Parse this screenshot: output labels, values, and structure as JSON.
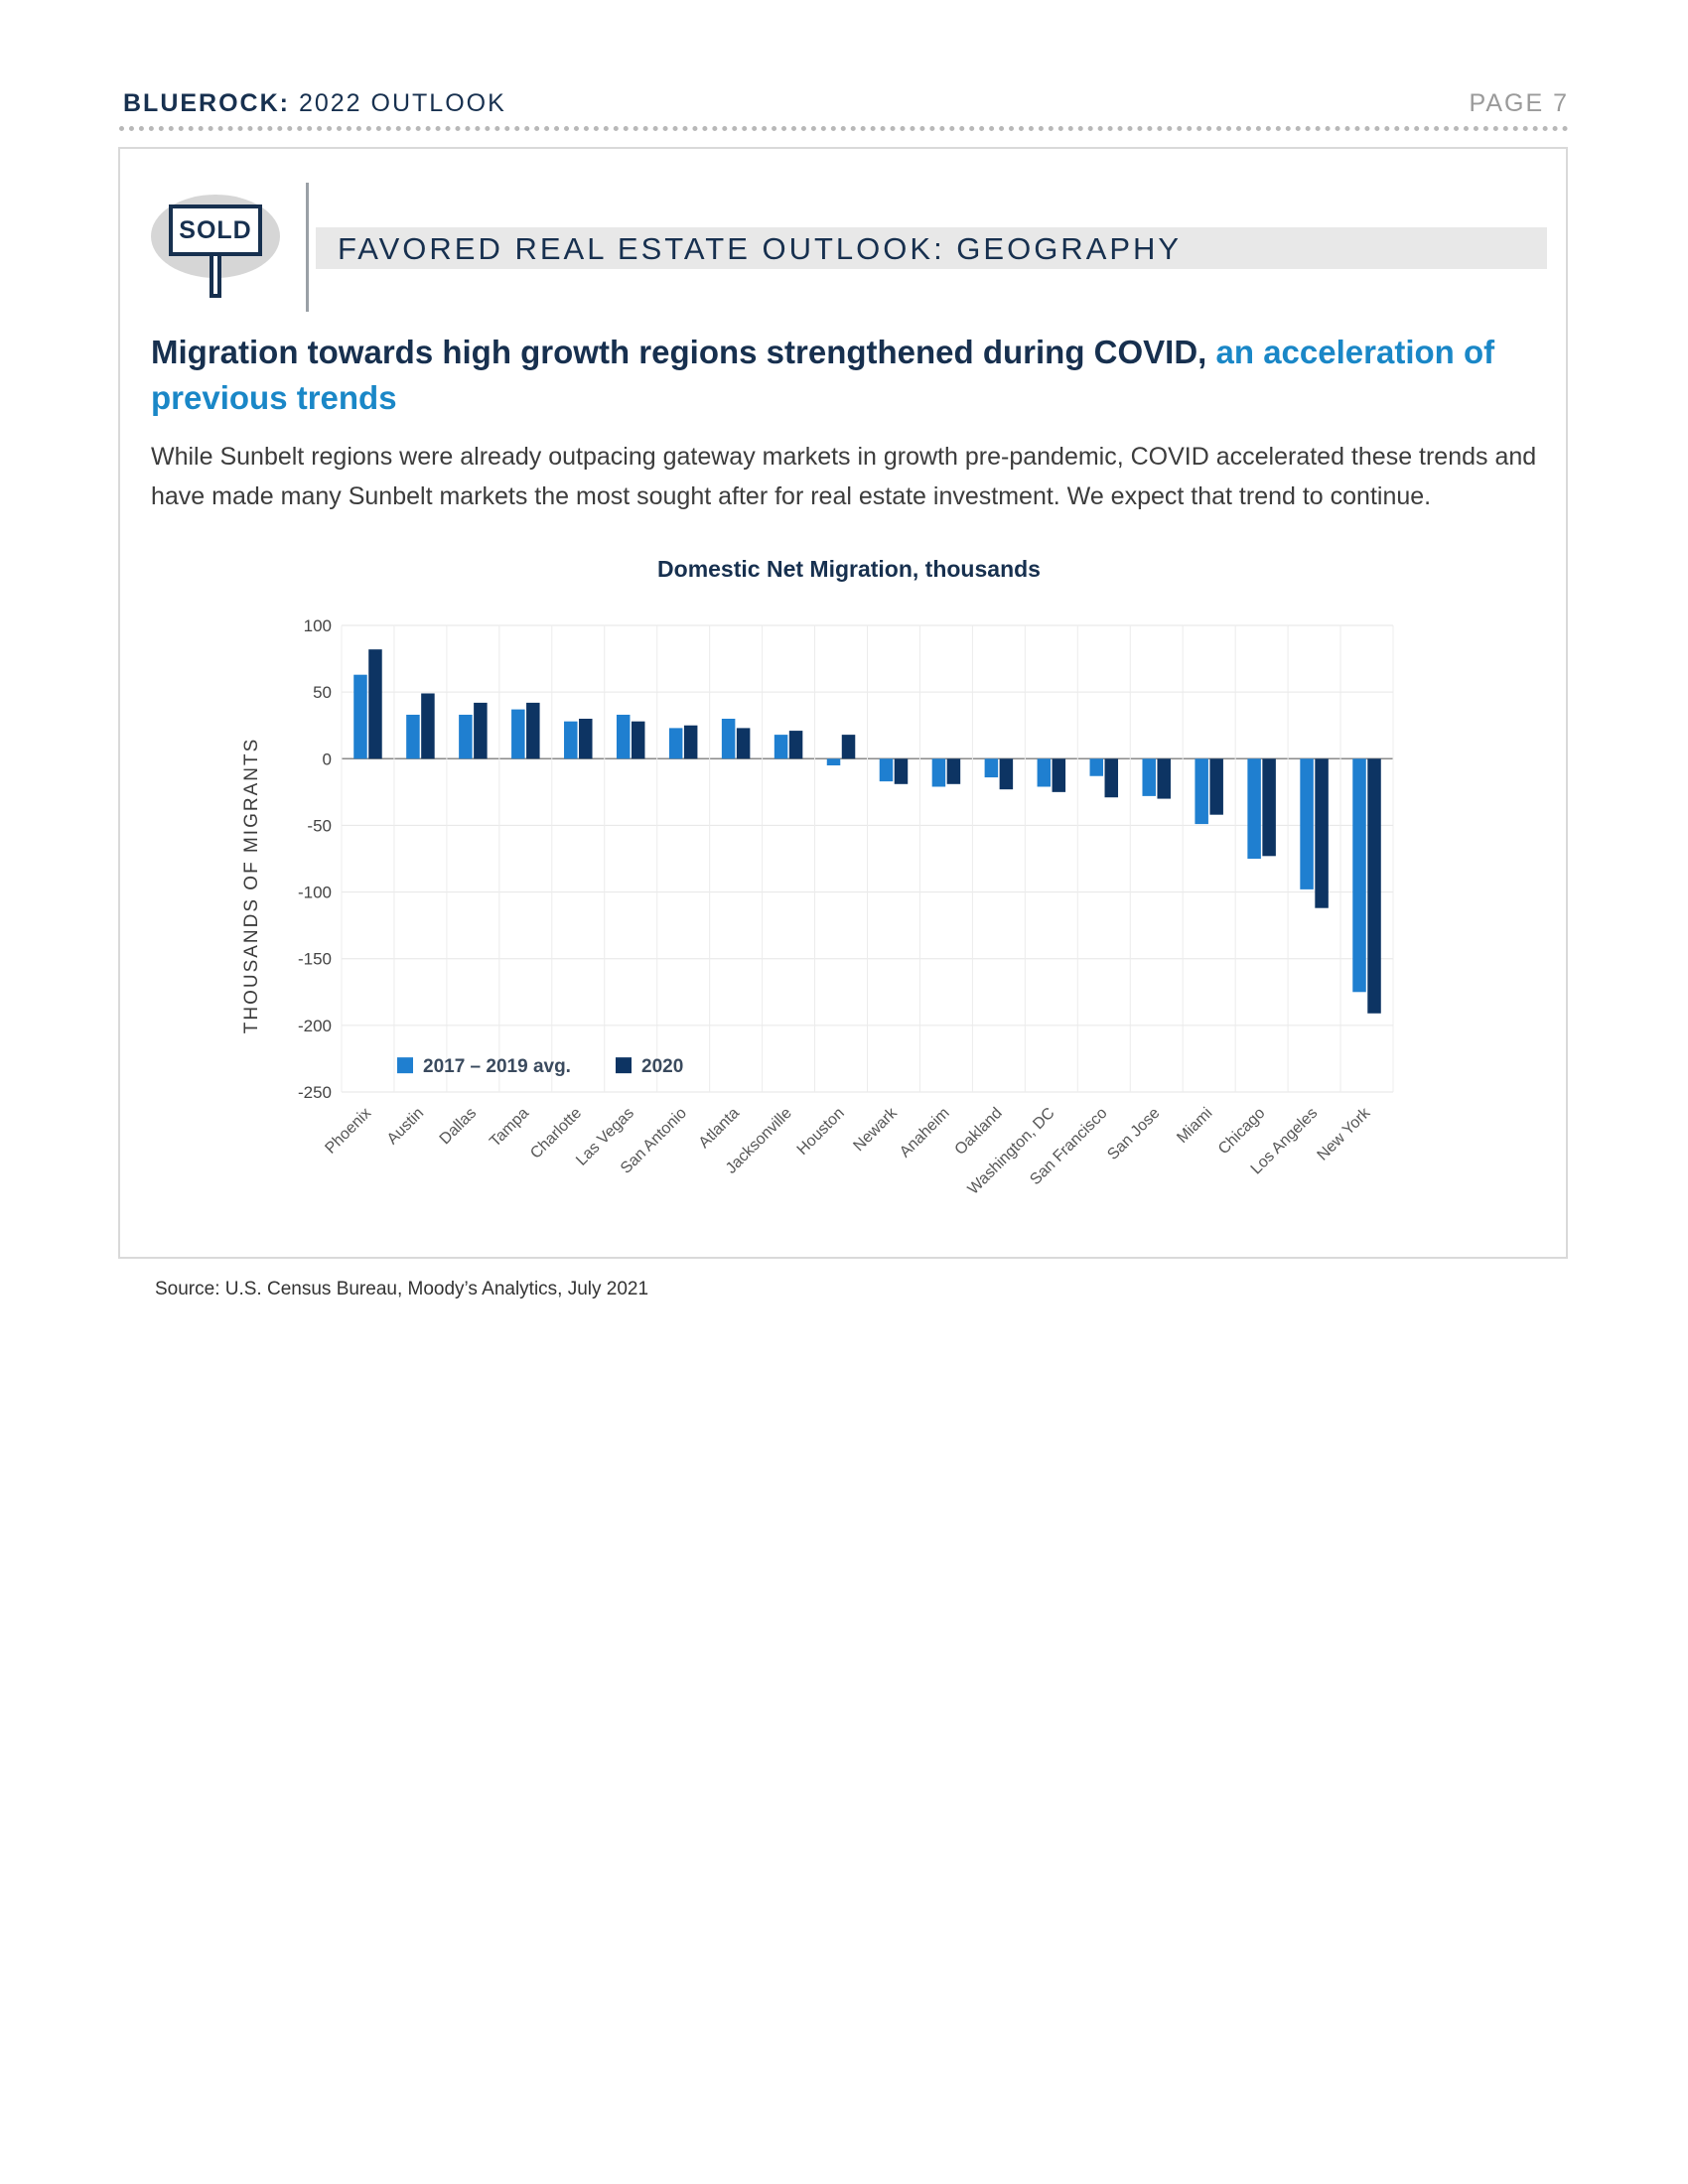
{
  "header": {
    "brand": "BLUEROCK:",
    "doc_title": "2022 OUTLOOK",
    "page_label": "PAGE 7"
  },
  "section": {
    "badge_text": "SOLD",
    "title": "FAVORED REAL ESTATE OUTLOOK: GEOGRAPHY"
  },
  "headline": {
    "main": "Migration towards high growth regions strengthened during COVID,",
    "accent": "an acceleration of previous trends"
  },
  "body_text": "While Sunbelt regions were already outpacing gateway markets in growth pre-pandemic, COVID accelerated these trends and have made many Sunbelt markets the most sought after for real estate investment.  We expect that trend to continue.",
  "colors": {
    "navy": "#17304f",
    "accent": "#1a87c7",
    "series_avg": "#1f7fd0",
    "series_2020": "#0d3463"
  },
  "chart_data": {
    "type": "bar",
    "title": "Domestic Net Migration, thousands",
    "xlabel": "",
    "ylabel": "THOUSANDS OF MIGRANTS",
    "ylim": [
      -250,
      100
    ],
    "yticks": [
      100,
      50,
      0,
      -50,
      -100,
      -150,
      -200,
      -250
    ],
    "grid": true,
    "legend_position": "bottom-left",
    "categories": [
      "Phoenix",
      "Austin",
      "Dallas",
      "Tampa",
      "Charlotte",
      "Las Vegas",
      "San Antonio",
      "Atlanta",
      "Jacksonville",
      "Houston",
      "Newark",
      "Anaheim",
      "Oakland",
      "Washington, DC",
      "San Francisco",
      "San Jose",
      "Miami",
      "Chicago",
      "Los Angeles",
      "New York"
    ],
    "series": [
      {
        "name": "2017 – 2019 avg.",
        "values": [
          63,
          33,
          33,
          37,
          28,
          33,
          23,
          30,
          18,
          -5,
          -17,
          -21,
          -14,
          -21,
          -13,
          -28,
          -49,
          -75,
          -98,
          -175
        ]
      },
      {
        "name": "2020",
        "values": [
          82,
          49,
          42,
          42,
          30,
          28,
          25,
          23,
          21,
          18,
          -19,
          -19,
          -23,
          -25,
          -29,
          -30,
          -42,
          -73,
          -112,
          -191
        ]
      }
    ]
  },
  "source": "Source: U.S. Census Bureau, Moody’s Analytics, July 2021"
}
